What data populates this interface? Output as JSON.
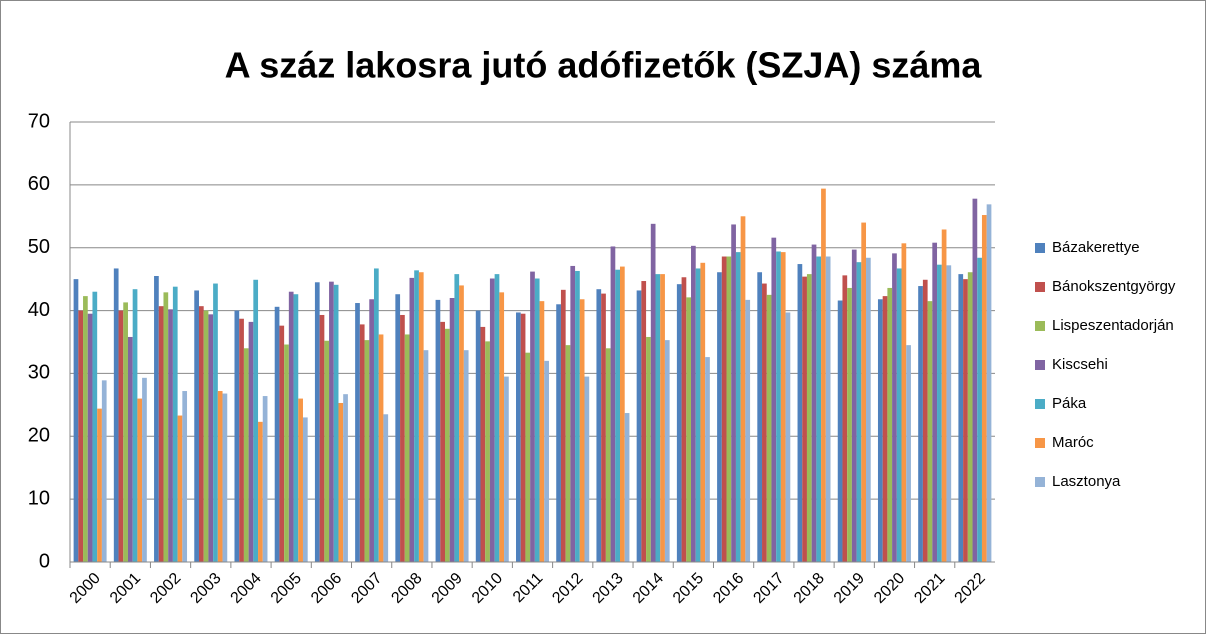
{
  "chart_data": {
    "type": "bar",
    "title": "A száz lakosra jutó adófizetők (SZJA) száma",
    "categories": [
      "2000",
      "2001",
      "2002",
      "2003",
      "2004",
      "2005",
      "2006",
      "2007",
      "2008",
      "2009",
      "2010",
      "2011",
      "2012",
      "2013",
      "2014",
      "2015",
      "2016",
      "2017",
      "2018",
      "2019",
      "2020",
      "2021",
      "2022"
    ],
    "series": [
      {
        "name": "Bázakerettye",
        "color": "#4f81bd",
        "values": [
          45,
          46.7,
          45.5,
          43.2,
          40,
          40.6,
          44.5,
          41.2,
          42.6,
          41.7,
          40,
          39.7,
          41,
          43.4,
          43.2,
          44.2,
          46.1,
          46.1,
          47.4,
          41.6,
          41.8,
          43.9,
          45.8
        ]
      },
      {
        "name": "Bánokszentgyörgy",
        "color": "#c0504d",
        "values": [
          40,
          40,
          40.7,
          40.7,
          38.7,
          37.6,
          39.3,
          37.8,
          39.3,
          38.2,
          37.4,
          39.5,
          43.3,
          42.7,
          44.7,
          45.3,
          48.6,
          44.3,
          45.4,
          45.6,
          42.3,
          44.9,
          45
        ]
      },
      {
        "name": "Lispeszentadorján",
        "color": "#9bbb59",
        "values": [
          42.3,
          41.3,
          42.9,
          40,
          34,
          34.6,
          35.2,
          35.3,
          36.2,
          37.1,
          35.1,
          33.3,
          34.5,
          34,
          35.8,
          42.1,
          48.6,
          42.5,
          45.8,
          43.6,
          43.6,
          41.5,
          46.1
        ]
      },
      {
        "name": "Kiscsehi",
        "color": "#8064a2",
        "values": [
          39.5,
          35.8,
          40.2,
          39.4,
          38.2,
          43,
          44.6,
          41.8,
          45.2,
          42,
          45.1,
          46.2,
          47.1,
          50.2,
          53.8,
          50.3,
          53.7,
          51.6,
          50.5,
          49.7,
          49.1,
          50.8,
          57.8
        ]
      },
      {
        "name": "Páka",
        "color": "#4bacc6",
        "values": [
          43,
          43.4,
          43.8,
          44.3,
          44.9,
          42.6,
          44.1,
          46.7,
          46.4,
          45.8,
          45.8,
          45.1,
          46.3,
          46.5,
          45.8,
          46.7,
          49.3,
          49.4,
          48.6,
          47.7,
          46.7,
          47.3,
          48.4
        ]
      },
      {
        "name": "Maróc",
        "color": "#f79646",
        "values": [
          24.4,
          26,
          23.3,
          27.2,
          22.3,
          26,
          25.3,
          36.2,
          46.1,
          44,
          42.9,
          41.5,
          41.8,
          47,
          45.8,
          47.6,
          55,
          49.3,
          59.4,
          54,
          50.7,
          52.9,
          55.2
        ]
      },
      {
        "name": "Lasztonya",
        "color": "#95b3d7",
        "values": [
          28.9,
          29.3,
          27.2,
          26.8,
          26.4,
          23,
          26.7,
          23.5,
          33.7,
          33.7,
          29.5,
          32,
          29.5,
          23.7,
          35.3,
          32.6,
          41.7,
          39.7,
          48.6,
          48.4,
          34.5,
          47.2,
          56.9
        ]
      }
    ],
    "ylim": [
      0,
      70
    ],
    "yticks": [
      0,
      10,
      20,
      30,
      40,
      50,
      60,
      70
    ],
    "grid": true,
    "legend": "right"
  }
}
